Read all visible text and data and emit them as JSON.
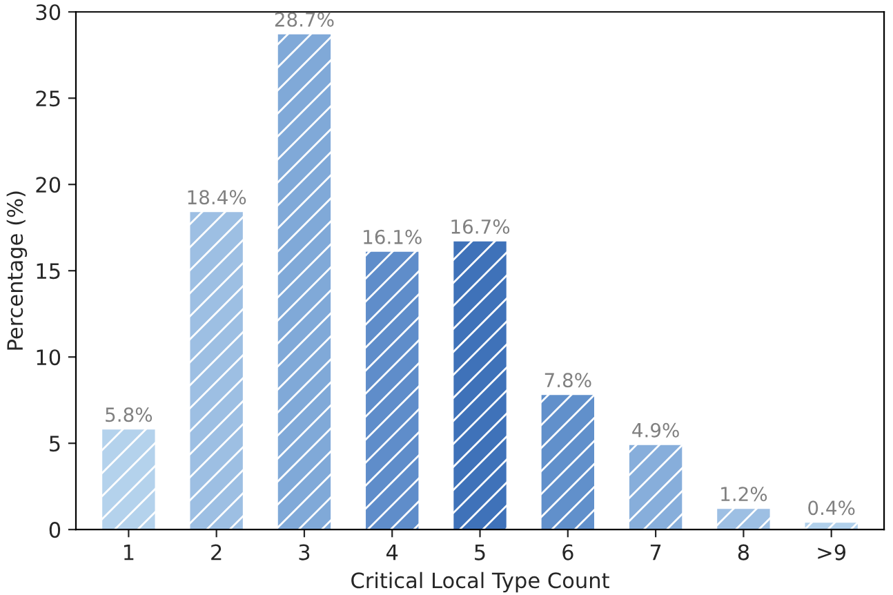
{
  "chart_data": {
    "type": "bar",
    "xlabel": "Critical Local Type Count",
    "ylabel": "Percentage (%)",
    "categories": [
      "1",
      "2",
      "3",
      "4",
      "5",
      "6",
      "7",
      "8",
      ">9"
    ],
    "values": [
      5.8,
      18.4,
      28.7,
      16.1,
      16.7,
      7.8,
      4.9,
      1.2,
      0.4
    ],
    "colors": [
      "#b4d2ec",
      "#9dbfe3",
      "#80a9d8",
      "#5f8dca",
      "#3f72b9",
      "#6190cb",
      "#87aedb",
      "#9dbfe3",
      "#b1d0eb"
    ],
    "value_labels": [
      "5.8%",
      "18.4%",
      "28.7%",
      "16.1%",
      "16.7%",
      "7.8%",
      "4.9%",
      "1.2%",
      "0.4%"
    ],
    "ylim": [
      0,
      30
    ],
    "yticks": [
      0,
      5,
      10,
      15,
      20,
      25,
      30
    ],
    "grid": false
  }
}
